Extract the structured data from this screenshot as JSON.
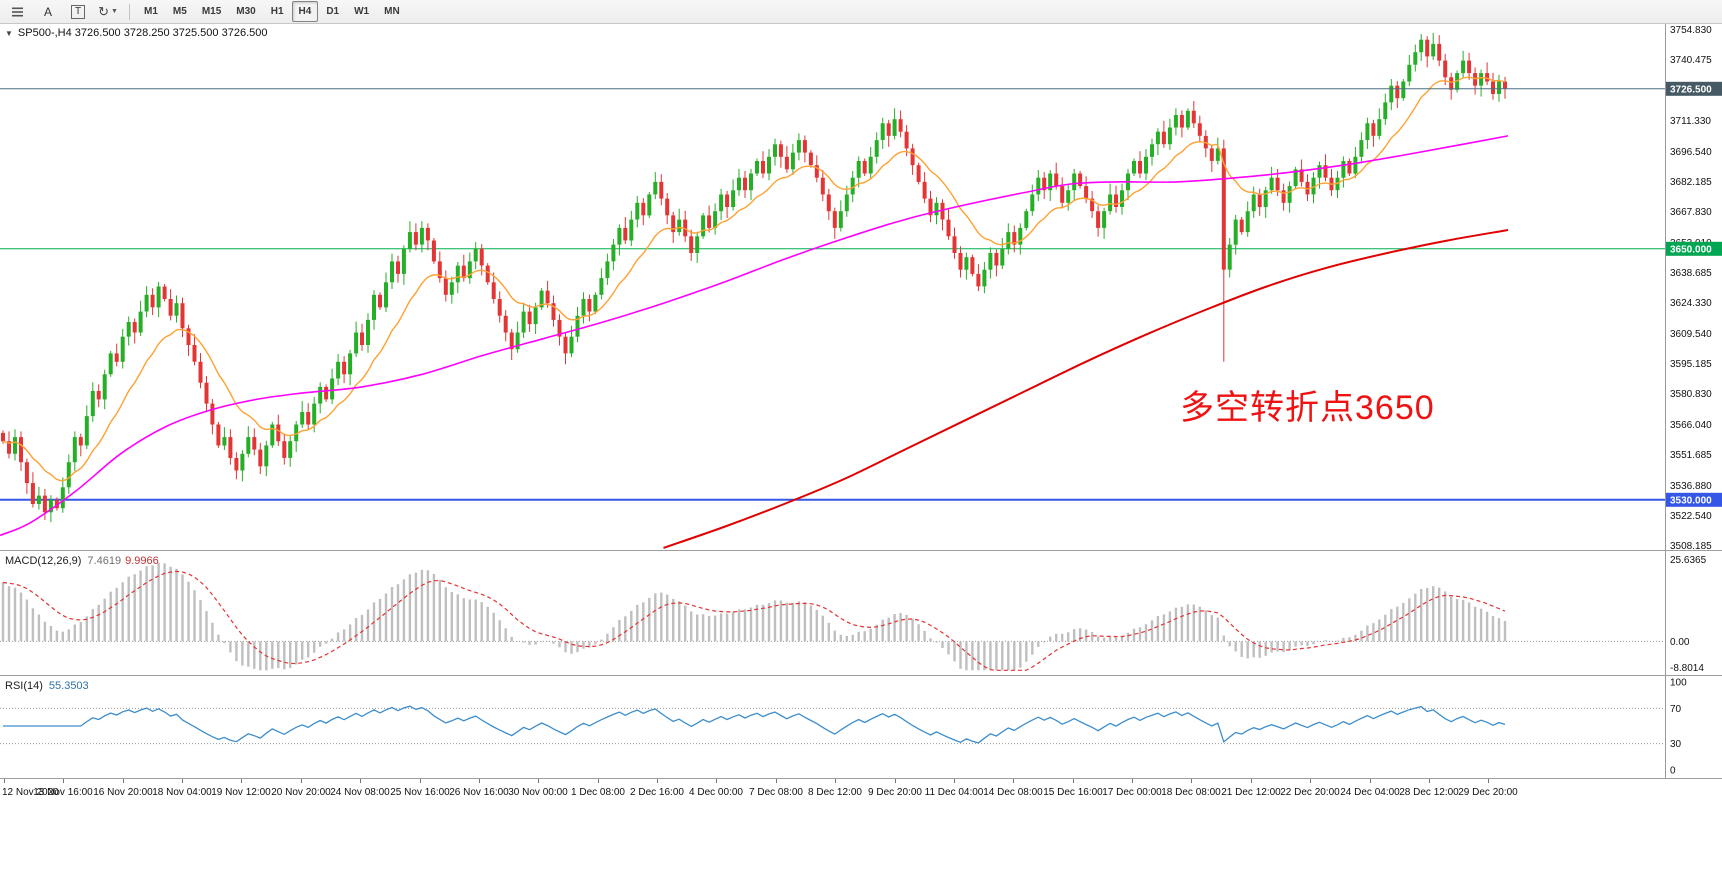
{
  "toolbar": {
    "tool_a": "A",
    "tool_t": "T",
    "timeframes": [
      "M1",
      "M5",
      "M15",
      "M30",
      "H1",
      "H4",
      "D1",
      "W1",
      "MN"
    ],
    "active_timeframe": "H4"
  },
  "chart": {
    "symbol_ohlc": "SP500-,H4  3726.500 3728.250 3725.500 3726.500",
    "annotation": "多空转折点3650",
    "ylim": [
      3506.0,
      3757.5
    ],
    "price_axis": [
      "3754.830",
      "3740.475",
      "3711.330",
      "3696.540",
      "3682.185",
      "3667.830",
      "3653.010",
      "3638.685",
      "3624.330",
      "3609.540",
      "3595.185",
      "3580.830",
      "3566.040",
      "3551.685",
      "3536.880",
      "3522.540",
      "3508.185"
    ],
    "hlines": [
      {
        "price": 3726.5,
        "label": "3726.500",
        "color": "#4a6f80",
        "width": 1,
        "tag_bg": "#455a64",
        "on_top": true
      },
      {
        "price": 3650.0,
        "label": "3650.000",
        "color": "#00b050",
        "width": 1,
        "tag_bg": "#00a651",
        "on_top": false
      },
      {
        "price": 3530.0,
        "label": "3530.000",
        "color": "#3457e8",
        "width": 2,
        "tag_bg": "#3457e8",
        "on_top": false
      }
    ]
  },
  "macd": {
    "name": "MACD(12,26,9)",
    "value_main": "7.4619",
    "value_signal": "9.9966",
    "axis_top": "25.6365",
    "axis_zero": "0.00",
    "axis_bottom": "-8.8014",
    "ylim": [
      -8.8014,
      25.6365
    ]
  },
  "rsi": {
    "name": "RSI(14)",
    "value": "55.3503",
    "axis": [
      "100",
      "70",
      "30",
      "0"
    ],
    "levels": [
      70,
      30
    ]
  },
  "time_axis": [
    "12 Nov 2020",
    "13 Nov 16:00",
    "16 Nov 20:00",
    "18 Nov 04:00",
    "19 Nov 12:00",
    "20 Nov 20:00",
    "24 Nov 08:00",
    "25 Nov 16:00",
    "26 Nov 16:00",
    "30 Nov 00:00",
    "1 Dec 08:00",
    "2 Dec 16:00",
    "4 Dec 00:00",
    "7 Dec 08:00",
    "8 Dec 12:00",
    "9 Dec 20:00",
    "11 Dec 04:00",
    "14 Dec 08:00",
    "15 Dec 16:00",
    "17 Dec 00:00",
    "18 Dec 08:00",
    "21 Dec 12:00",
    "22 Dec 20:00",
    "24 Dec 04:00",
    "28 Dec 12:00",
    "29 Dec 20:00"
  ],
  "chart_data": {
    "type": "candlestick",
    "symbol": "SP500-",
    "timeframe": "H4",
    "ohlc_current": {
      "open": 3726.5,
      "high": 3728.25,
      "low": 3725.5,
      "close": 3726.5
    },
    "ylim": [
      3506.0,
      3757.5
    ],
    "closes": [
      3558,
      3552,
      3560,
      3548,
      3538,
      3528,
      3532,
      3524,
      3530,
      3526,
      3536,
      3548,
      3560,
      3556,
      3570,
      3582,
      3578,
      3590,
      3600,
      3596,
      3608,
      3615,
      3610,
      3620,
      3628,
      3622,
      3632,
      3626,
      3618,
      3624,
      3612,
      3604,
      3596,
      3586,
      3576,
      3566,
      3556,
      3560,
      3550,
      3544,
      3552,
      3560,
      3554,
      3546,
      3556,
      3566,
      3558,
      3550,
      3558,
      3566,
      3572,
      3566,
      3576,
      3584,
      3578,
      3588,
      3596,
      3590,
      3600,
      3610,
      3604,
      3616,
      3628,
      3622,
      3634,
      3644,
      3638,
      3650,
      3658,
      3652,
      3660,
      3654,
      3644,
      3636,
      3628,
      3634,
      3642,
      3636,
      3644,
      3650,
      3642,
      3634,
      3626,
      3618,
      3610,
      3602,
      3610,
      3620,
      3614,
      3622,
      3630,
      3624,
      3616,
      3608,
      3600,
      3608,
      3618,
      3626,
      3620,
      3628,
      3636,
      3644,
      3652,
      3660,
      3654,
      3664,
      3672,
      3666,
      3676,
      3682,
      3674,
      3666,
      3658,
      3664,
      3656,
      3648,
      3656,
      3666,
      3660,
      3668,
      3676,
      3670,
      3678,
      3684,
      3678,
      3686,
      3692,
      3686,
      3694,
      3700,
      3694,
      3688,
      3696,
      3702,
      3696,
      3690,
      3684,
      3676,
      3668,
      3660,
      3668,
      3676,
      3684,
      3692,
      3686,
      3694,
      3702,
      3710,
      3704,
      3712,
      3706,
      3698,
      3690,
      3682,
      3674,
      3666,
      3672,
      3664,
      3656,
      3648,
      3640,
      3646,
      3638,
      3632,
      3640,
      3648,
      3642,
      3650,
      3658,
      3652,
      3660,
      3668,
      3676,
      3684,
      3678,
      3686,
      3680,
      3672,
      3678,
      3686,
      3680,
      3674,
      3668,
      3660,
      3668,
      3676,
      3670,
      3678,
      3686,
      3692,
      3686,
      3694,
      3700,
      3706,
      3700,
      3708,
      3714,
      3708,
      3716,
      3710,
      3704,
      3698,
      3692,
      3698,
      3640,
      3652,
      3664,
      3658,
      3668,
      3676,
      3670,
      3678,
      3684,
      3678,
      3672,
      3680,
      3688,
      3682,
      3676,
      3684,
      3690,
      3684,
      3678,
      3684,
      3692,
      3686,
      3694,
      3702,
      3710,
      3704,
      3712,
      3720,
      3728,
      3722,
      3730,
      3738,
      3744,
      3750,
      3742,
      3748,
      3740,
      3732,
      3726,
      3734,
      3740,
      3734,
      3728,
      3734,
      3730,
      3724,
      3730,
      3726.5
    ],
    "crash": {
      "index": 204,
      "low": 3596
    },
    "ma_orange_period": 13,
    "ma_magenta": [
      [
        0.0,
        3513
      ],
      [
        0.02,
        3519
      ],
      [
        0.05,
        3534
      ],
      [
        0.08,
        3552
      ],
      [
        0.11,
        3565
      ],
      [
        0.14,
        3573
      ],
      [
        0.17,
        3578
      ],
      [
        0.2,
        3581
      ],
      [
        0.24,
        3584
      ],
      [
        0.28,
        3590
      ],
      [
        0.32,
        3599
      ],
      [
        0.36,
        3607
      ],
      [
        0.4,
        3615
      ],
      [
        0.44,
        3624
      ],
      [
        0.48,
        3634
      ],
      [
        0.52,
        3645
      ],
      [
        0.56,
        3655
      ],
      [
        0.6,
        3664
      ],
      [
        0.64,
        3671
      ],
      [
        0.68,
        3677
      ],
      [
        0.71,
        3681
      ],
      [
        0.74,
        3682
      ],
      [
        0.78,
        3682
      ],
      [
        0.82,
        3684
      ],
      [
        0.86,
        3687
      ],
      [
        0.9,
        3691
      ],
      [
        0.94,
        3696
      ],
      [
        0.97,
        3700
      ],
      [
        1.0,
        3704
      ]
    ],
    "ma_red": [
      [
        0.44,
        3507
      ],
      [
        0.48,
        3517
      ],
      [
        0.52,
        3528
      ],
      [
        0.56,
        3540
      ],
      [
        0.6,
        3554
      ],
      [
        0.64,
        3568
      ],
      [
        0.68,
        3582
      ],
      [
        0.72,
        3596
      ],
      [
        0.76,
        3609
      ],
      [
        0.8,
        3621
      ],
      [
        0.84,
        3632
      ],
      [
        0.88,
        3641
      ],
      [
        0.92,
        3648
      ],
      [
        0.96,
        3654
      ],
      [
        1.0,
        3659
      ]
    ],
    "colors": {
      "up": "#27ae27",
      "down": "#e23535",
      "ma_orange": "#ffa133",
      "ma_magenta": "#ff00ff",
      "ma_red": "#e10000",
      "macd_hist": "#bfbfbf",
      "macd_signal": "#e23333",
      "rsi_line": "#3c8dcc",
      "annotation": "#ef1212"
    }
  }
}
